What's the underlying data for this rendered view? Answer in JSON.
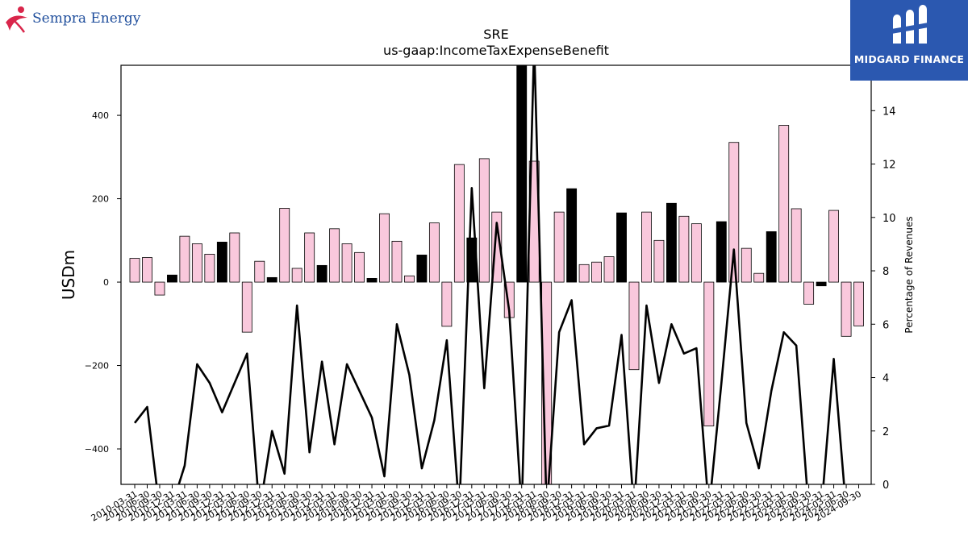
{
  "logos": {
    "left_text": "Sempra Energy",
    "right_text": "MIDGARD FINANCE"
  },
  "colors": {
    "bar_pink": "#f9c8dc",
    "bar_black": "#000000",
    "line": "#000000"
  },
  "chart_data": {
    "type": "bar",
    "title": "SRE",
    "subtitle": "us-gaap:IncomeTaxExpenseBenefit",
    "ylabel": "USDm",
    "y2label": "Percentage of Revenues",
    "ylim": [
      -485,
      520
    ],
    "y2lim": [
      0,
      15.7
    ],
    "yticks": [
      -400,
      -200,
      0,
      200,
      400
    ],
    "y2ticks": [
      0,
      2,
      4,
      6,
      8,
      10,
      12,
      14
    ],
    "grid": false,
    "categories": [
      "2010-03-31",
      "2010-06-30",
      "2010-09-30",
      "2010-12-31",
      "2011-03-31",
      "2011-06-30",
      "2011-09-30",
      "2011-12-31",
      "2012-03-31",
      "2012-06-30",
      "2012-09-30",
      "2012-12-31",
      "2013-03-31",
      "2013-06-30",
      "2013-09-30",
      "2013-12-31",
      "2014-03-31",
      "2014-06-30",
      "2014-09-30",
      "2014-12-31",
      "2015-03-31",
      "2015-06-30",
      "2015-09-30",
      "2015-12-31",
      "2016-03-31",
      "2016-06-30",
      "2016-09-30",
      "2016-12-31",
      "2017-03-31",
      "2017-06-30",
      "2017-09-30",
      "2017-12-31",
      "2018-03-31",
      "2018-06-30",
      "2018-09-30",
      "2018-12-31",
      "2019-03-31",
      "2019-06-30",
      "2019-09-30",
      "2019-12-31",
      "2020-03-31",
      "2020-06-30",
      "2020-09-30",
      "2020-12-31",
      "2021-03-31",
      "2021-06-30",
      "2021-09-30",
      "2021-12-31",
      "2022-03-31",
      "2022-06-30",
      "2022-09-30",
      "2022-12-31",
      "2023-03-31",
      "2023-06-30",
      "2023-09-30",
      "2023-12-31",
      "2024-03-31",
      "2024-06-30",
      "2024-09-30"
    ],
    "tick_labels": [
      "2010-03-31",
      "2010-06-30",
      "2010-09-30",
      "2010-12-31",
      "2011-03-31",
      "2011-06-30",
      "2011-09-30",
      "2011-12-31",
      "2012-03-31",
      "2012-06-30",
      "2012-09-30",
      "2012-12-31",
      "2013-03-31",
      "2013-06-30",
      "2013-09-30",
      "2013-12-31",
      "2014-03-31",
      "2014-06-30",
      "2014-09-30",
      "2014-12-31",
      "2015-03-31",
      "2015-06-30",
      "2015-09-30",
      "2015-12-31",
      "2016-03-31",
      "2016-06-30",
      "2016-09-30",
      "2016-12-31",
      "2017-03-31",
      "2017-06-30",
      "2017-09-30",
      "2017-12-31",
      "2018-03-31",
      "2018-06-30",
      "2018-09-30",
      "2018-12-31",
      "2019-03-31",
      "2019-06-30",
      "2019-09-30",
      "2019-12-31",
      "2020-03-31",
      "2020-06-30",
      "2020-09-30",
      "2020-12-31",
      "2021-03-31",
      "2021-06-30",
      "2021-09-30",
      "2021-12-31",
      "2022-03-31",
      "2022-06-30",
      "2022-09-30",
      "2022-12-31",
      "2023-03-31",
      "2023-06-30",
      "2023-09-30",
      "2023-12-31",
      "2024-03-31",
      "2024-06-30",
      "2024-09-30"
    ],
    "values": [
      57,
      59,
      -31,
      17,
      110,
      92,
      67,
      96,
      118,
      -120,
      50,
      11,
      177,
      33,
      118,
      40,
      128,
      92,
      71,
      9,
      164,
      98,
      15,
      65,
      142,
      -106,
      282,
      106,
      296,
      168,
      -85,
      618,
      290,
      -520,
      168,
      224,
      42,
      48,
      61,
      166,
      -210,
      168,
      100,
      189,
      158,
      140,
      -345,
      145,
      335,
      81,
      21,
      121,
      376,
      176,
      -53,
      -9,
      172,
      -130,
      -105
    ],
    "series": [
      {
        "values": [
          2.3,
          2.9,
          -1.0,
          -0.8,
          0.7,
          4.5,
          3.8,
          2.7,
          3.8,
          4.9,
          -1.0,
          2.0,
          0.4,
          6.7,
          1.2,
          4.6,
          1.5,
          4.5,
          3.5,
          2.5,
          0.3,
          6.0,
          4.1,
          0.6,
          2.4,
          5.4,
          -1.0,
          11.1,
          3.6,
          9.8,
          6.5,
          -1.0,
          16.5,
          -1.0,
          5.7,
          6.9,
          1.5,
          2.1,
          2.2,
          5.6,
          -1.0,
          6.7,
          3.8,
          6.0,
          4.9,
          5.1,
          -1.0,
          3.8,
          8.8,
          2.3,
          0.6,
          3.5,
          5.7,
          5.2,
          -1.0,
          -1.0,
          4.7,
          -1.0,
          -1.0
        ]
      }
    ],
    "bar_colors": [
      "pink",
      "pink",
      "pink",
      "black",
      "pink",
      "pink",
      "pink",
      "black",
      "pink",
      "pink",
      "pink",
      "black",
      "pink",
      "pink",
      "pink",
      "black",
      "pink",
      "pink",
      "pink",
      "black",
      "pink",
      "pink",
      "pink",
      "black",
      "pink",
      "pink",
      "pink",
      "black",
      "pink",
      "pink",
      "pink",
      "black",
      "pink",
      "pink",
      "pink",
      "black",
      "pink",
      "pink",
      "pink",
      "black",
      "pink",
      "pink",
      "pink",
      "black",
      "pink",
      "pink",
      "pink",
      "black",
      "pink",
      "pink",
      "pink",
      "black",
      "pink",
      "pink",
      "pink",
      "black",
      "pink",
      "pink",
      "pink"
    ]
  }
}
